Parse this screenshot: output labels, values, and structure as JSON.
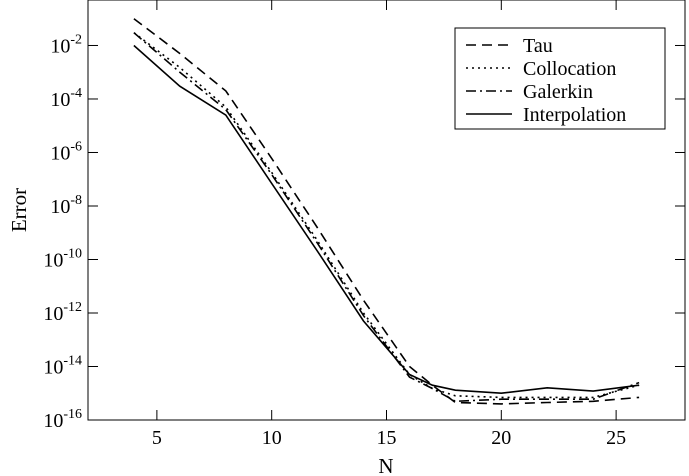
{
  "chart_data": {
    "type": "line",
    "xlabel": "N",
    "ylabel": "Error",
    "xlim": [
      2,
      28
    ],
    "ylim_log10": [
      -16,
      -0.3
    ],
    "y_scale": "log",
    "grid": false,
    "legend_position": "top-right",
    "x_ticks": [
      5,
      10,
      15,
      20,
      25
    ],
    "x_tick_labels": [
      "5",
      "10",
      "15",
      "20",
      "25"
    ],
    "y_ticks_log10": [
      -16,
      -14,
      -12,
      -10,
      -8,
      -6,
      -4,
      -2
    ],
    "y_tick_base": "10",
    "y_tick_exponents": [
      "-16",
      "-14",
      "-12",
      "-10",
      "-8",
      "-6",
      "-4",
      "-2"
    ],
    "x_minor_ticks": [
      10,
      15,
      20,
      25
    ],
    "series": [
      {
        "name": "Tau",
        "dash": "dashed",
        "color": "#000000",
        "x": [
          4,
          6,
          8,
          10,
          12,
          14,
          16,
          17,
          18,
          20,
          22,
          24,
          26
        ],
        "y": [
          0.1,
          0.005,
          0.0002,
          6e-07,
          1.5e-09,
          3e-12,
          1e-14,
          2e-15,
          4.5e-16,
          4e-16,
          4.5e-16,
          5e-16,
          7e-16
        ]
      },
      {
        "name": "Collocation",
        "dash": "dotted",
        "color": "#000000",
        "x": [
          4,
          6,
          8,
          10,
          12,
          14,
          16,
          17,
          18,
          20,
          22,
          24,
          26
        ],
        "y": [
          0.03,
          0.0015,
          5e-05,
          1.8e-07,
          5e-10,
          1e-12,
          5e-15,
          1.5e-15,
          8e-16,
          7e-16,
          7e-16,
          7e-16,
          2e-15
        ]
      },
      {
        "name": "Galerkin",
        "dash": "dashdot",
        "color": "#000000",
        "x": [
          4,
          6,
          8,
          10,
          12,
          14,
          16,
          17,
          18,
          20,
          22,
          24,
          26
        ],
        "y": [
          0.03,
          0.001,
          4e-05,
          1.5e-07,
          4e-10,
          8e-13,
          4e-15,
          1.5e-15,
          5e-16,
          6e-16,
          6e-16,
          6e-16,
          2.5e-15
        ]
      },
      {
        "name": "Interpolation",
        "dash": "solid",
        "color": "#000000",
        "x": [
          4,
          6,
          8,
          10,
          12,
          14,
          16,
          17,
          18,
          20,
          22,
          24,
          26
        ],
        "y": [
          0.01,
          0.0003,
          2.5e-05,
          7e-08,
          2e-10,
          5e-13,
          5e-15,
          2e-15,
          1.3e-15,
          1e-15,
          1.6e-15,
          1.2e-15,
          2e-15
        ]
      }
    ]
  }
}
